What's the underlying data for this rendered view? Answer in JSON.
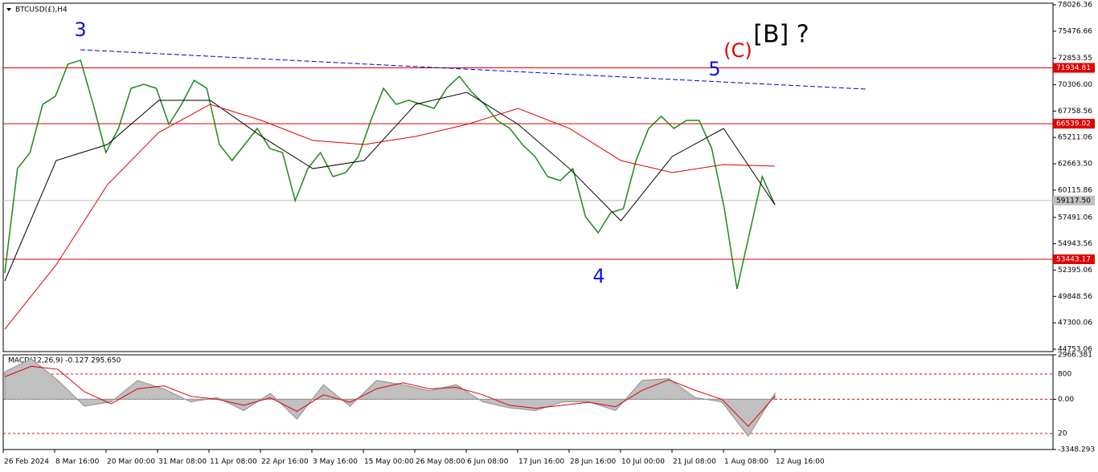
{
  "symbol_label": "BTCUSD(£),H4",
  "wave_labels": [
    {
      "text": "3",
      "color": "#1010e0"
    },
    {
      "text": "4",
      "color": "#1010e0"
    },
    {
      "text": "5",
      "color": "#1010e0"
    },
    {
      "text": "(C)",
      "color": "#e00000"
    },
    {
      "text": "[B] ?",
      "color": "#000000"
    }
  ],
  "x_labels": [
    "26 Feb 2024",
    "8 Mar 16:00",
    "20 Mar 00:00",
    "31 Mar 08:00",
    "11 Apr 08:00",
    "22 Apr 16:00",
    "3 May 16:00",
    "15 May 00:00",
    "26 May 08:00",
    "6 Jun 08:00",
    "17 Jun 16:00",
    "28 Jun 16:00",
    "10 Jul 00:00",
    "21 Jul 08:00",
    "1 Aug 08:00",
    "12 Aug 16:00"
  ],
  "chart_data": [
    {
      "type": "line",
      "ylim": [
        44520,
        78182
      ],
      "yticks": [
        78026.36,
        75476.66,
        72853.55,
        {
          "value": 70306,
          "label": "70306.00"
        },
        67758.56,
        65211.06,
        {
          "value": 62663.5,
          "label": "62663.50"
        },
        60115.86,
        57491.06,
        54943.56,
        52395.06,
        49848.56,
        47300.06,
        44753.06
      ],
      "series": [
        {
          "color": "#1a8a1a",
          "values": [
            52120,
            62200,
            63750,
            68410,
            69180,
            72290,
            72670,
            68410,
            63750,
            66080,
            69960,
            70350,
            69960,
            66470,
            68410,
            70730,
            69960,
            64530,
            62980,
            64530,
            66080,
            64140,
            63750,
            59100,
            62200,
            63750,
            61430,
            61820,
            63360,
            66860,
            69960,
            68410,
            68800,
            68410,
            68020,
            69960,
            71120,
            69570,
            68410,
            66860,
            66080,
            64530,
            63360,
            61430,
            61040,
            62200,
            57550,
            56000,
            57940,
            58330,
            62980,
            66080,
            67250,
            66080,
            66860,
            66860,
            64140,
            58330,
            50570,
            56000,
            61430,
            58710
          ]
        },
        {
          "color": "#000000",
          "values": [
            51345,
            62980,
            64530,
            68800,
            68800,
            65310,
            62200,
            62980,
            68410,
            69570,
            66470,
            62200,
            57160,
            63370,
            66080,
            58710
          ]
        },
        {
          "color": "#e00000",
          "values": [
            46690,
            52900,
            60650,
            65700,
            68410,
            66860,
            64920,
            64530,
            65310,
            66470,
            68020,
            66080,
            62980,
            61820,
            62590,
            62440
          ]
        }
      ],
      "trendline": {
        "color": "#0000cc",
        "values": [
          73683,
          69883
        ]
      },
      "levels": [
        {
          "value": 71934.81,
          "color": "#e00000"
        },
        {
          "value": 66539.02,
          "color": "#e00000"
        },
        {
          "value": 53443.17,
          "color": "#e00000"
        }
      ],
      "current_price": {
        "value": 59117.5,
        "label": "59117.50"
      }
    },
    {
      "type": "area",
      "title": "MACD(12,26,9) -0.127 295.650",
      "ylim": [
        -3348.293,
        2966.381
      ],
      "yticks": [
        2966.381,
        {
          "value": 0,
          "label": "0.00"
        },
        -3348.293
      ],
      "level_labels": [
        "800",
        "20"
      ],
      "series": [
        {
          "color": "#c0c0c0",
          "values": [
            1837,
            2700,
            1260,
            -460,
            -170,
            1260,
            690,
            -170,
            115,
            -750,
            400,
            -1320,
            975,
            -460,
            1260,
            975,
            575,
            975,
            -170,
            -575,
            -750,
            -170,
            -170,
            -750,
            1260,
            1380,
            115,
            -170,
            -2470,
            400
          ]
        },
        {
          "color": "#e00000",
          "values": [
            1500,
            2200,
            2000,
            500,
            -300,
            700,
            900,
            200,
            0,
            -400,
            100,
            -800,
            300,
            -200,
            700,
            1100,
            700,
            800,
            300,
            -400,
            -600,
            -400,
            -200,
            -500,
            600,
            1300,
            600,
            0,
            -1800,
            200
          ]
        }
      ]
    }
  ]
}
